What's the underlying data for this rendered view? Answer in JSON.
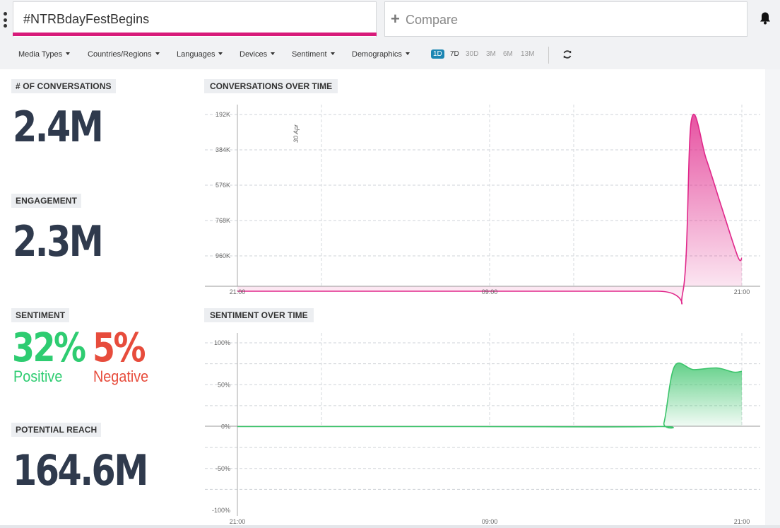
{
  "search": {
    "query": "#NTRBdayFestBegins",
    "compare_placeholder": "Compare"
  },
  "filters": [
    "Media Types",
    "Countries/Regions",
    "Languages",
    "Devices",
    "Sentiment",
    "Demographics"
  ],
  "ranges": [
    {
      "label": "1D",
      "active": true
    },
    {
      "label": "7D",
      "active": false
    },
    {
      "label": "30D",
      "active": false
    },
    {
      "label": "3M",
      "active": false
    },
    {
      "label": "6M",
      "active": false
    },
    {
      "label": "13M",
      "active": false
    }
  ],
  "stats": {
    "conversations": {
      "label": "# OF CONVERSATIONS",
      "value": "2.4M"
    },
    "engagement": {
      "label": "ENGAGEMENT",
      "value": "2.3M"
    },
    "sentiment": {
      "label": "SENTIMENT",
      "positive_value": "32%",
      "positive_word": "Positive",
      "negative_value": "5%",
      "negative_word": "Negative"
    },
    "reach": {
      "label": "POTENTIAL REACH",
      "value": "164.6M"
    }
  },
  "colors": {
    "accent": "#d81b7a",
    "positive": "#2ecc71",
    "negative": "#e74c3c",
    "stat_number": "#2f3a4d",
    "range_active": "#1b86b3"
  },
  "chart_data": [
    {
      "type": "area",
      "title": "CONVERSATIONS OVER TIME",
      "x_tick_labels": [
        "21:00",
        "09:00",
        "21:00"
      ],
      "y_tick_labels": [
        "192K",
        "384K",
        "576K",
        "768K",
        "960K"
      ],
      "ylim": [
        0,
        960000
      ],
      "annotation": "30 Apr",
      "x_hours": [
        0,
        11,
        20,
        21.2,
        21.6,
        22.3,
        23.0,
        23.8,
        24
      ],
      "values": [
        0,
        0,
        0,
        0,
        930000,
        720000,
        470000,
        190000,
        180000
      ],
      "color": "#e0278a"
    },
    {
      "type": "area",
      "title": "SENTIMENT OVER TIME",
      "x_tick_labels": [
        "21:00",
        "09:00",
        "21:00"
      ],
      "y_tick_labels": [
        "100%",
        "50%",
        "0%",
        "-50%",
        "-100%"
      ],
      "ylim": [
        -100,
        100
      ],
      "x_hours": [
        0,
        11,
        20.0,
        20.3,
        20.8,
        21.7,
        22.8,
        23.6,
        24
      ],
      "values": [
        0,
        0,
        0,
        5,
        72,
        68,
        70,
        65,
        66
      ],
      "color": "#3cc46b"
    }
  ]
}
